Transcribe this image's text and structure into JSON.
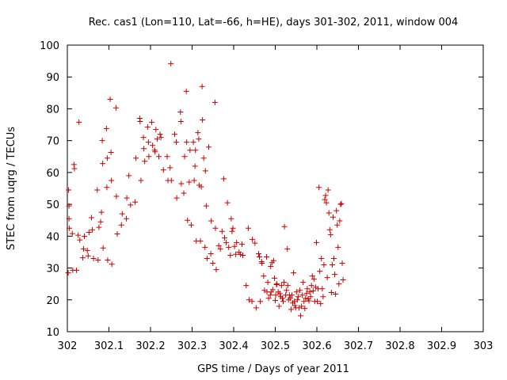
{
  "chart_data": {
    "type": "scatter",
    "title": "Rec. cas1 (Lon=110, Lat=-66, h=HE), days 301-302, 2011, window 004",
    "xlabel": "GPS time / Days of year 2011",
    "ylabel": "STEC from uqrg / TECUs",
    "xlim": [
      302,
      303
    ],
    "ylim": [
      10,
      100
    ],
    "xticks": [
      302,
      302.1,
      302.2,
      302.3,
      302.4,
      302.5,
      302.6,
      302.7,
      302.8,
      302.9,
      303
    ],
    "xtick_labels": [
      "302",
      "302.1",
      "302.2",
      "302.3",
      "302.4",
      "302.5",
      "302.6",
      "302.7",
      "302.8",
      "302.9",
      "303"
    ],
    "yticks": [
      10,
      20,
      30,
      40,
      50,
      60,
      70,
      80,
      90,
      100
    ],
    "ytick_labels": [
      "10",
      "20",
      "30",
      "40",
      "50",
      "60",
      "70",
      "80",
      "90",
      "100"
    ],
    "grid": false,
    "marker": "+",
    "color": "#cc0000",
    "series": [
      {
        "points": [
          [
            302.002,
            28.5
          ],
          [
            302.003,
            54.5
          ],
          [
            302.004,
            49.5
          ],
          [
            302.004,
            45.5
          ],
          [
            302.005,
            42.5
          ],
          [
            302.012,
            40.8
          ],
          [
            302.013,
            29.3
          ],
          [
            302.016,
            62.5
          ],
          [
            302.017,
            61.2
          ],
          [
            302.022,
            29.3
          ],
          [
            302.026,
            40.3
          ],
          [
            302.028,
            75.8
          ],
          [
            302.03,
            38.8
          ],
          [
            302.037,
            33.2
          ],
          [
            302.039,
            36.0
          ],
          [
            302.041,
            40.0
          ],
          [
            302.048,
            35.5
          ],
          [
            302.05,
            33.8
          ],
          [
            302.052,
            41.2
          ],
          [
            302.058,
            45.8
          ],
          [
            302.06,
            42.0
          ],
          [
            302.063,
            33.0
          ],
          [
            302.072,
            54.5
          ],
          [
            302.074,
            32.5
          ],
          [
            302.076,
            42.8
          ],
          [
            302.08,
            44.5
          ],
          [
            302.082,
            47.5
          ],
          [
            302.084,
            70.0
          ],
          [
            302.085,
            62.8
          ],
          [
            302.086,
            36.3
          ],
          [
            302.094,
            73.8
          ],
          [
            302.095,
            55.3
          ],
          [
            302.096,
            64.5
          ],
          [
            302.097,
            32.5
          ],
          [
            302.103,
            83.0
          ],
          [
            302.105,
            66.3
          ],
          [
            302.106,
            57.5
          ],
          [
            302.107,
            31.2
          ],
          [
            302.117,
            80.3
          ],
          [
            302.118,
            52.5
          ],
          [
            302.12,
            40.7
          ],
          [
            302.13,
            43.5
          ],
          [
            302.132,
            47.0
          ],
          [
            302.142,
            45.5
          ],
          [
            302.143,
            52.0
          ],
          [
            302.148,
            59.0
          ],
          [
            302.152,
            49.8
          ],
          [
            302.163,
            50.7
          ],
          [
            302.165,
            64.5
          ],
          [
            302.174,
            77.0
          ],
          [
            302.175,
            76.0
          ],
          [
            302.177,
            57.5
          ],
          [
            302.183,
            71.0
          ],
          [
            302.184,
            67.5
          ],
          [
            302.186,
            63.5
          ],
          [
            302.193,
            74.3
          ],
          [
            302.195,
            69.5
          ],
          [
            302.196,
            65.0
          ],
          [
            302.203,
            75.8
          ],
          [
            302.205,
            68.5
          ],
          [
            302.21,
            67.0
          ],
          [
            302.211,
            66.5
          ],
          [
            302.213,
            73.5
          ],
          [
            302.216,
            70.5
          ],
          [
            302.22,
            65.0
          ],
          [
            302.223,
            72.0
          ],
          [
            302.225,
            71.0
          ],
          [
            302.231,
            60.8
          ],
          [
            302.24,
            65.0
          ],
          [
            302.242,
            57.5
          ],
          [
            302.247,
            61.5
          ],
          [
            302.249,
            94.2
          ],
          [
            302.25,
            57.5
          ],
          [
            302.258,
            72.0
          ],
          [
            302.262,
            69.5
          ],
          [
            302.263,
            52.0
          ],
          [
            302.272,
            79.0
          ],
          [
            302.273,
            76.0
          ],
          [
            302.274,
            56.5
          ],
          [
            302.28,
            53.5
          ],
          [
            302.282,
            65.0
          ],
          [
            302.286,
            85.5
          ],
          [
            302.287,
            69.5
          ],
          [
            302.289,
            45.0
          ],
          [
            302.293,
            57.0
          ],
          [
            302.295,
            67.0
          ],
          [
            302.298,
            43.5
          ],
          [
            302.303,
            69.5
          ],
          [
            302.305,
            57.5
          ],
          [
            302.307,
            62.0
          ],
          [
            302.308,
            67.0
          ],
          [
            302.31,
            38.5
          ],
          [
            302.314,
            72.5
          ],
          [
            302.316,
            70.5
          ],
          [
            302.317,
            56.0
          ],
          [
            302.32,
            38.5
          ],
          [
            302.322,
            55.5
          ],
          [
            302.324,
            87.0
          ],
          [
            302.325,
            76.5
          ],
          [
            302.328,
            64.5
          ],
          [
            302.331,
            36.5
          ],
          [
            302.332,
            60.5
          ],
          [
            302.334,
            49.5
          ],
          [
            302.336,
            33.0
          ],
          [
            302.34,
            68.0
          ],
          [
            302.345,
            34.5
          ],
          [
            302.346,
            44.8
          ],
          [
            302.35,
            31.5
          ],
          [
            302.355,
            82.0
          ],
          [
            302.356,
            42.5
          ],
          [
            302.358,
            29.5
          ],
          [
            302.364,
            37.0
          ],
          [
            302.368,
            36.0
          ],
          [
            302.372,
            41.5
          ],
          [
            302.376,
            58.0
          ],
          [
            302.378,
            39.5
          ],
          [
            302.382,
            38.0
          ],
          [
            302.385,
            50.5
          ],
          [
            302.388,
            36.5
          ],
          [
            302.392,
            34.0
          ],
          [
            302.394,
            45.5
          ],
          [
            302.396,
            41.5
          ],
          [
            302.398,
            42.5
          ],
          [
            302.402,
            36.8
          ],
          [
            302.405,
            34.3
          ],
          [
            302.407,
            38.0
          ],
          [
            302.413,
            35.0
          ],
          [
            302.416,
            34.3
          ],
          [
            302.42,
            37.5
          ],
          [
            302.422,
            34.0
          ],
          [
            302.43,
            24.5
          ],
          [
            302.435,
            42.5
          ],
          [
            302.437,
            20.0
          ],
          [
            302.444,
            19.5
          ],
          [
            302.445,
            39.0
          ],
          [
            302.451,
            37.8
          ],
          [
            302.454,
            17.5
          ],
          [
            302.46,
            34.5
          ],
          [
            302.462,
            33.5
          ],
          [
            302.464,
            19.5
          ],
          [
            302.467,
            32.0
          ],
          [
            302.468,
            31.5
          ],
          [
            302.472,
            27.5
          ],
          [
            302.474,
            23.0
          ],
          [
            302.479,
            33.5
          ],
          [
            302.48,
            22.5
          ],
          [
            302.482,
            25.5
          ],
          [
            302.484,
            20.5
          ],
          [
            302.488,
            21.5
          ],
          [
            302.489,
            30.5
          ],
          [
            302.49,
            22.5
          ],
          [
            302.492,
            31.7
          ],
          [
            302.494,
            23.2
          ],
          [
            302.496,
            32.3
          ],
          [
            302.498,
            26.8
          ],
          [
            302.5,
            19.8
          ],
          [
            302.501,
            21.5
          ],
          [
            302.503,
            24.8
          ],
          [
            302.504,
            25.0
          ],
          [
            302.507,
            22.5
          ],
          [
            302.509,
            18.0
          ],
          [
            302.511,
            22.0
          ],
          [
            302.513,
            21.0
          ],
          [
            302.515,
            24.5
          ],
          [
            302.517,
            20.5
          ],
          [
            302.519,
            19.5
          ],
          [
            302.521,
            25.5
          ],
          [
            302.522,
            43.0
          ],
          [
            302.525,
            21.5
          ],
          [
            302.527,
            23.0
          ],
          [
            302.529,
            36.0
          ],
          [
            302.53,
            24.5
          ],
          [
            302.532,
            20.0
          ],
          [
            302.534,
            21.5
          ],
          [
            302.536,
            20.5
          ],
          [
            302.538,
            17.0
          ],
          [
            302.54,
            21.5
          ],
          [
            302.542,
            19.0
          ],
          [
            302.544,
            28.5
          ],
          [
            302.546,
            19.5
          ],
          [
            302.547,
            18.2
          ],
          [
            302.549,
            17.5
          ],
          [
            302.551,
            22.5
          ],
          [
            302.553,
            20.0
          ],
          [
            302.555,
            21.0
          ],
          [
            302.557,
            17.5
          ],
          [
            302.559,
            23.0
          ],
          [
            302.561,
            15.0
          ],
          [
            302.563,
            18.0
          ],
          [
            302.565,
            21.5
          ],
          [
            302.567,
            25.5
          ],
          [
            302.569,
            19.5
          ],
          [
            302.571,
            17.3
          ],
          [
            302.573,
            20.5
          ],
          [
            302.575,
            22.0
          ],
          [
            302.577,
            23.5
          ],
          [
            302.579,
            20.3
          ],
          [
            302.581,
            19.7
          ],
          [
            302.583,
            22.5
          ],
          [
            302.585,
            21.0
          ],
          [
            302.587,
            24.5
          ],
          [
            302.589,
            27.5
          ],
          [
            302.591,
            22.8
          ],
          [
            302.593,
            26.5
          ],
          [
            302.595,
            19.5
          ],
          [
            302.597,
            24.0
          ],
          [
            302.599,
            38.0
          ],
          [
            302.601,
            19.5
          ],
          [
            302.603,
            23.5
          ],
          [
            302.605,
            55.3
          ],
          [
            302.607,
            29.0
          ],
          [
            302.609,
            18.8
          ],
          [
            302.611,
            33.0
          ],
          [
            302.613,
            23.5
          ],
          [
            302.615,
            21.0
          ],
          [
            302.617,
            31.0
          ],
          [
            302.619,
            51.5
          ],
          [
            302.621,
            52.8
          ],
          [
            302.623,
            50.5
          ],
          [
            302.625,
            27.0
          ],
          [
            302.627,
            54.5
          ],
          [
            302.629,
            47.3
          ],
          [
            302.631,
            42.0
          ],
          [
            302.633,
            40.5
          ],
          [
            302.635,
            22.3
          ],
          [
            302.637,
            31.0
          ],
          [
            302.639,
            46.0
          ],
          [
            302.641,
            33.0
          ],
          [
            302.643,
            28.0
          ],
          [
            302.645,
            21.8
          ],
          [
            302.647,
            48.0
          ],
          [
            302.649,
            43.5
          ],
          [
            302.651,
            36.5
          ],
          [
            302.653,
            25.0
          ],
          [
            302.655,
            44.8
          ],
          [
            302.657,
            50.0
          ],
          [
            302.659,
            50.2
          ],
          [
            302.661,
            31.5
          ],
          [
            302.663,
            26.3
          ]
        ]
      }
    ]
  }
}
